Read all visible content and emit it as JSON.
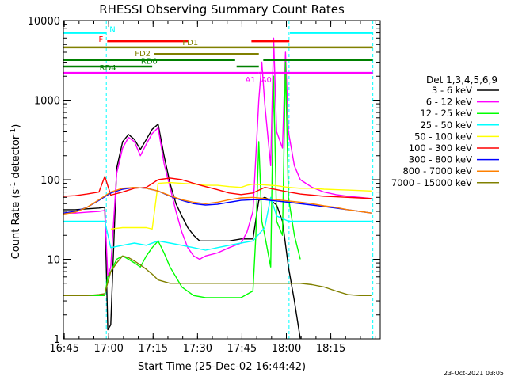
{
  "chart_data": {
    "type": "line",
    "title": "RHESSI Observing Summary Count Rates",
    "xlabel": "Start Time (25-Dec-02 16:44:42)",
    "ylabel_main": "Count Rate (s",
    "ylabel_sup1": "-1",
    "ylabel_mid": " detector",
    "ylabel_sup2": "-1",
    "ylabel_end": ")",
    "x_unit": "minutes after 16:44:42",
    "xlim": [
      0,
      107
    ],
    "ylim": [
      1,
      10000
    ],
    "ylog": true,
    "x_ticks": [
      {
        "label": "16:45",
        "value": 0.3
      },
      {
        "label": "17:00",
        "value": 15.3
      },
      {
        "label": "17:15",
        "value": 30.3
      },
      {
        "label": "17:30",
        "value": 45.3
      },
      {
        "label": "17:45",
        "value": 60.3
      },
      {
        "label": "18:00",
        "value": 75.3
      },
      {
        "label": "18:15",
        "value": 90.3
      }
    ],
    "y_ticks": [
      {
        "label": "1",
        "value": 1
      },
      {
        "label": "10",
        "value": 10
      },
      {
        "label": "100",
        "value": 100
      },
      {
        "label": "1000",
        "value": 1000
      },
      {
        "label": "10000",
        "value": 10000
      }
    ],
    "legend_title": "Det 1,3,4,5,6,9",
    "legend_placement": "right",
    "series": [
      {
        "name": "3 - 6 keV",
        "color": "#000000",
        "x": [
          0,
          4,
          8,
          12,
          14,
          15,
          16,
          18,
          20,
          22,
          24,
          26,
          28,
          30,
          32,
          34,
          36,
          38,
          40,
          42,
          44,
          46,
          48,
          52,
          56,
          60,
          64,
          66,
          68,
          70,
          72,
          74,
          76,
          78,
          80
        ],
        "y": [
          42,
          42,
          43,
          44,
          45,
          1.3,
          1.5,
          140,
          300,
          370,
          320,
          240,
          320,
          430,
          500,
          200,
          90,
          50,
          35,
          25,
          20,
          17,
          17,
          17,
          17,
          18,
          18,
          55,
          60,
          55,
          48,
          30,
          8,
          3,
          1
        ]
      },
      {
        "name": "6 - 12 keV",
        "color": "#ff00ff",
        "x": [
          0,
          4,
          8,
          12,
          14,
          15,
          16,
          18,
          20,
          22,
          24,
          26,
          28,
          30,
          32,
          34,
          36,
          38,
          40,
          42,
          44,
          46,
          48,
          52,
          56,
          60,
          62,
          64,
          66,
          67,
          68,
          70,
          71,
          72,
          74,
          75,
          76,
          78,
          80,
          84,
          88,
          92,
          96,
          100,
          104
        ],
        "y": [
          38,
          38,
          39,
          40,
          41,
          6,
          8,
          120,
          250,
          340,
          300,
          200,
          280,
          380,
          450,
          160,
          80,
          40,
          22,
          14,
          11,
          10,
          11,
          12,
          14,
          16,
          22,
          40,
          1000,
          3000,
          900,
          150,
          6000,
          400,
          250,
          4000,
          400,
          150,
          100,
          80,
          70,
          65,
          62,
          60,
          58
        ]
      },
      {
        "name": "12 - 25 keV",
        "color": "#00ff00",
        "x": [
          0,
          4,
          8,
          12,
          14,
          15,
          16,
          18,
          20,
          22,
          24,
          26,
          28,
          30,
          32,
          34,
          36,
          38,
          40,
          44,
          48,
          52,
          56,
          60,
          64,
          65,
          66,
          67,
          68,
          70,
          71,
          72,
          74,
          75,
          76,
          78,
          80
        ],
        "y": [
          3.5,
          3.5,
          3.5,
          3.5,
          3.5,
          6,
          7,
          10,
          11,
          10,
          9,
          8,
          11,
          14,
          17,
          12,
          8,
          6,
          4.5,
          3.5,
          3.3,
          3.3,
          3.3,
          3.3,
          4,
          20,
          300,
          30,
          20,
          8,
          2000,
          30,
          20,
          3000,
          60,
          20,
          10
        ]
      },
      {
        "name": "25 - 50 keV",
        "color": "#00ffff",
        "x": [
          0,
          4,
          8,
          12,
          14,
          16,
          20,
          24,
          28,
          32,
          36,
          40,
          44,
          48,
          52,
          56,
          60,
          64,
          68,
          70,
          72,
          76,
          80,
          84,
          88,
          92,
          96,
          100,
          104
        ],
        "y": [
          30,
          30,
          30,
          30,
          30,
          14,
          15,
          16,
          15,
          17,
          16,
          15,
          14,
          13,
          14,
          15,
          16,
          17,
          25,
          60,
          35,
          30,
          30,
          30,
          30,
          30,
          30,
          30,
          30
        ]
      },
      {
        "name": "50 - 100 keV",
        "color": "#ffff00",
        "x": [
          0,
          14,
          16,
          20,
          24,
          28,
          30,
          32,
          36,
          40,
          44,
          48,
          52,
          56,
          60,
          62,
          64,
          68,
          72,
          76,
          80,
          84,
          88,
          92,
          96,
          100,
          104
        ],
        "y": [
          null,
          null,
          24,
          25,
          25,
          25,
          24,
          90,
          92,
          90,
          88,
          85,
          85,
          82,
          80,
          85,
          88,
          86,
          84,
          80,
          78,
          78,
          76,
          75,
          74,
          73,
          72
        ]
      },
      {
        "name": "100 - 300 keV",
        "color": "#ff0000",
        "x": [
          0,
          4,
          8,
          12,
          14,
          16,
          20,
          24,
          28,
          32,
          36,
          40,
          44,
          48,
          52,
          56,
          60,
          64,
          68,
          72,
          76,
          80,
          84,
          88,
          92,
          96,
          100,
          104
        ],
        "y": [
          62,
          63,
          66,
          70,
          110,
          64,
          70,
          78,
          80,
          100,
          105,
          100,
          90,
          82,
          75,
          68,
          65,
          68,
          80,
          75,
          70,
          66,
          64,
          62,
          61,
          60,
          59,
          58
        ]
      },
      {
        "name": "300 - 800 keV",
        "color": "#0000ff",
        "x": [
          0,
          4,
          8,
          12,
          16,
          20,
          24,
          28,
          32,
          36,
          40,
          44,
          48,
          52,
          56,
          60,
          64,
          68,
          72,
          76,
          80,
          84,
          88,
          92,
          96,
          100,
          104
        ],
        "y": [
          38,
          40,
          45,
          55,
          68,
          76,
          80,
          78,
          72,
          62,
          55,
          50,
          48,
          49,
          52,
          55,
          56,
          56,
          54,
          52,
          50,
          48,
          46,
          44,
          42,
          40,
          38
        ]
      },
      {
        "name": "800 - 7000 keV",
        "color": "#ff8000",
        "x": [
          0,
          4,
          8,
          12,
          16,
          20,
          24,
          28,
          32,
          36,
          40,
          44,
          48,
          52,
          56,
          60,
          64,
          68,
          72,
          76,
          80,
          84,
          88,
          92,
          96,
          100,
          104
        ],
        "y": [
          37,
          39,
          45,
          56,
          70,
          78,
          80,
          78,
          72,
          63,
          56,
          52,
          50,
          52,
          56,
          59,
          60,
          58,
          56,
          54,
          52,
          50,
          47,
          45,
          42,
          40,
          38
        ]
      },
      {
        "name": "7000 - 15000 keV",
        "color": "#808000",
        "x": [
          0,
          4,
          8,
          12,
          14,
          16,
          18,
          20,
          22,
          24,
          26,
          28,
          30,
          32,
          36,
          40,
          44,
          48,
          52,
          56,
          60,
          64,
          68,
          72,
          76,
          80,
          84,
          88,
          92,
          96,
          100,
          104
        ],
        "y": [
          3.5,
          3.5,
          3.5,
          3.6,
          3.7,
          7,
          9,
          11,
          10.5,
          9.5,
          8.5,
          7.5,
          6.5,
          5.5,
          5,
          5,
          5,
          5,
          5,
          5,
          5,
          5,
          5,
          5,
          5,
          5,
          4.8,
          4.5,
          4,
          3.6,
          3.5,
          3.5
        ]
      }
    ],
    "vertical_markers": [
      {
        "x": 14.5,
        "color": "#00ffff"
      },
      {
        "x": 76.2,
        "color": "#00ffff"
      },
      {
        "x": 104.5,
        "color": "#00ffff"
      }
    ],
    "state_bars": [
      {
        "segments": [
          {
            "label": "N",
            "x0": 0,
            "x1": 14.5
          },
          {
            "label": "",
            "x0": 76.5,
            "x1": 104.5
          }
        ],
        "y": 7000,
        "color": "#00ffff",
        "label_at": "end-first"
      },
      {
        "segments": [
          {
            "label": "F",
            "x0": 14.8,
            "x1": 42
          },
          {
            "label": "",
            "x0": 63.5,
            "x1": 76.3
          }
        ],
        "y": 5500,
        "color": "#ff0000",
        "label_at": "start-first"
      },
      {
        "segments": [
          {
            "label": "FD1",
            "x0": 0,
            "x1": 104.5
          }
        ],
        "y": 4600,
        "color": "#808000",
        "label_at": "mid"
      },
      {
        "segments": [
          {
            "label": "FD2",
            "x0": 30.5,
            "x1": 66
          }
        ],
        "y": 3800,
        "color": "#808000",
        "label_at": "start-left"
      },
      {
        "segments": [
          {
            "label": "RD0",
            "x0": 0,
            "x1": 58
          },
          {
            "label": "",
            "x0": 67.5,
            "x1": 104.5
          }
        ],
        "y": 3200,
        "color": "#008000",
        "label_at": "mid-first"
      },
      {
        "segments": [
          {
            "label": "RD4",
            "x0": 0,
            "x1": 30
          },
          {
            "label": "",
            "x0": 58.5,
            "x1": 66
          }
        ],
        "y": 2650,
        "color": "#008000",
        "label_at": "mid-first"
      },
      {
        "segments": [
          {
            "label": "A1",
            "x0": 0,
            "x1": 66
          },
          {
            "label": "A0",
            "x0": 66,
            "x1": 67.8
          },
          {
            "label": "",
            "x0": 67.8,
            "x1": 104.5
          }
        ],
        "y": 2200,
        "color": "#ff00ff",
        "label_at": "special"
      }
    ],
    "footer_date": "23-Oct-2021 03:05"
  }
}
